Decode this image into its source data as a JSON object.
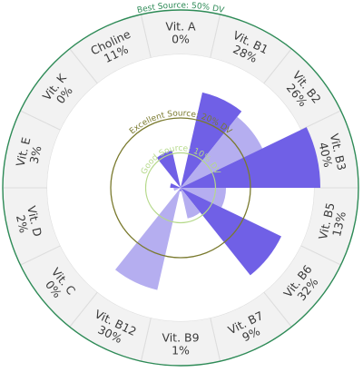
{
  "chart_data": {
    "type": "polar-bar",
    "title": "",
    "unit": "% DV",
    "nutrients": [
      {
        "name": "Choline",
        "value": 11,
        "label": "11%"
      },
      {
        "name": "Vit. A",
        "value": 0,
        "label": "0%"
      },
      {
        "name": "Vit. B1",
        "value": 28,
        "label": "28%"
      },
      {
        "name": "Vit. B2",
        "value": 26,
        "label": "26%"
      },
      {
        "name": "Vit. B3",
        "value": 40,
        "label": "40%"
      },
      {
        "name": "Vit. B5",
        "value": 13,
        "label": "13%"
      },
      {
        "name": "Vit. B6",
        "value": 32,
        "label": "32%"
      },
      {
        "name": "Vit. B7",
        "value": 9,
        "label": "9%"
      },
      {
        "name": "Vit. B9",
        "value": 1,
        "label": "1%"
      },
      {
        "name": "Vit. B12",
        "value": 30,
        "label": "30%"
      },
      {
        "name": "Vit. C",
        "value": 0,
        "label": "0%"
      },
      {
        "name": "Vit. D",
        "value": 2,
        "label": "2%"
      },
      {
        "name": "Vit. E",
        "value": 3,
        "label": "3%"
      },
      {
        "name": "Vit. K",
        "value": 0,
        "label": "0%"
      }
    ],
    "thresholds": [
      {
        "label": "Good Source: 10% DV",
        "value": 10,
        "color": "#b5d98a"
      },
      {
        "label": "Excellent Source: 20% DV",
        "value": 20,
        "color": "#7a7a2e"
      },
      {
        "label": "Best Source: 50% DV",
        "value": 50,
        "color": "#2e8b57"
      }
    ],
    "colors": {
      "bar_dark": "#7060e6",
      "bar_light": "#b5aef0",
      "segment_fill": "#f2f2f2",
      "segment_stroke": "#dddddd"
    }
  }
}
